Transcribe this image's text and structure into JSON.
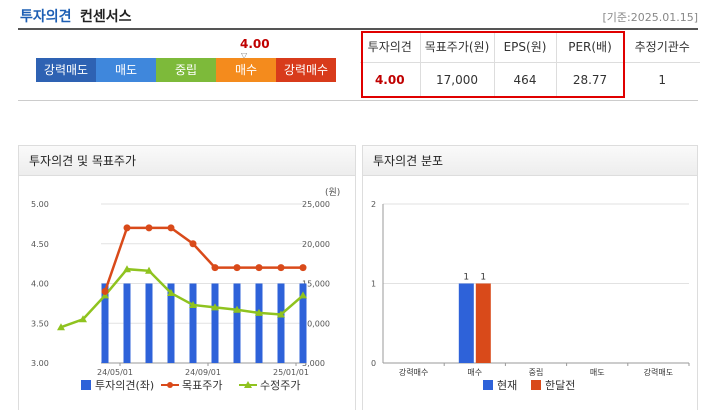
{
  "header": {
    "title_main": "투자의견",
    "title_sub": "컨센서스",
    "date": "[기준:2025.01.15]"
  },
  "scale": {
    "items": [
      {
        "label": "강력매도",
        "color": "#2e62b3"
      },
      {
        "label": "매도",
        "color": "#3f87dc"
      },
      {
        "label": "중립",
        "color": "#7dba3a"
      },
      {
        "label": "매수",
        "color": "#f48b1d"
      },
      {
        "label": "강력매수",
        "color": "#d83b1b"
      }
    ],
    "marker_value": "4.00"
  },
  "summary": {
    "headers": [
      "투자의견",
      "목표주가(원)",
      "EPS(원)",
      "PER(배)",
      "추정기관수"
    ],
    "values": [
      "4.00",
      "17,000",
      "464",
      "28.77",
      "1"
    ]
  },
  "panel_left": {
    "title": "투자의견 및 목표주가",
    "legend": [
      "투자의견(좌)",
      "목표주가",
      "수정주가"
    ],
    "y2_unit": "(원)"
  },
  "panel_right": {
    "title": "투자의견 분포",
    "legend": [
      "현재",
      "한달전"
    ]
  },
  "chart_data": [
    {
      "type": "bar",
      "title": "투자의견 및 목표주가",
      "x_ticks": [
        "24/05/01",
        "24/09/01",
        "25/01/01"
      ],
      "y_left": {
        "ticks": [
          "3.00",
          "3.50",
          "4.00",
          "4.50",
          "5.00"
        ],
        "min": 3.0,
        "max": 5.0
      },
      "y_right": {
        "ticks": [
          "5,000",
          "10,000",
          "15,000",
          "20,000",
          "25,000"
        ],
        "min": 5000,
        "max": 25000
      },
      "colors": {
        "opinion": "#2e62d9",
        "target": "#d94a1a",
        "adj": "#8fc31f"
      },
      "series": [
        {
          "name": "투자의견(좌)",
          "axis": "left",
          "kind": "bar",
          "values": [
            null,
            null,
            4.0,
            4.0,
            4.0,
            4.0,
            4.0,
            4.0,
            4.0,
            4.0,
            4.0,
            4.0
          ]
        },
        {
          "name": "목표주가",
          "axis": "right",
          "kind": "line",
          "values": [
            null,
            null,
            14000,
            22000,
            22000,
            22000,
            20000,
            17000,
            17000,
            17000,
            17000,
            17000
          ]
        },
        {
          "name": "수정주가",
          "axis": "right",
          "kind": "line",
          "values": [
            9500,
            10500,
            13500,
            16800,
            16600,
            13800,
            12300,
            12000,
            11700,
            11300,
            11100,
            13500
          ]
        }
      ]
    },
    {
      "type": "bar",
      "title": "투자의견 분포",
      "categories": [
        "강력매수",
        "매수",
        "중립",
        "매도",
        "강력매도"
      ],
      "y_ticks": [
        "0",
        "1",
        "2"
      ],
      "ylim": [
        0,
        2
      ],
      "colors": {
        "현재": "#2e62d9",
        "한달전": "#d94a1a"
      },
      "series": [
        {
          "name": "현재",
          "values": [
            0,
            1,
            0,
            0,
            0
          ]
        },
        {
          "name": "한달전",
          "values": [
            0,
            1,
            0,
            0,
            0
          ]
        }
      ]
    }
  ]
}
